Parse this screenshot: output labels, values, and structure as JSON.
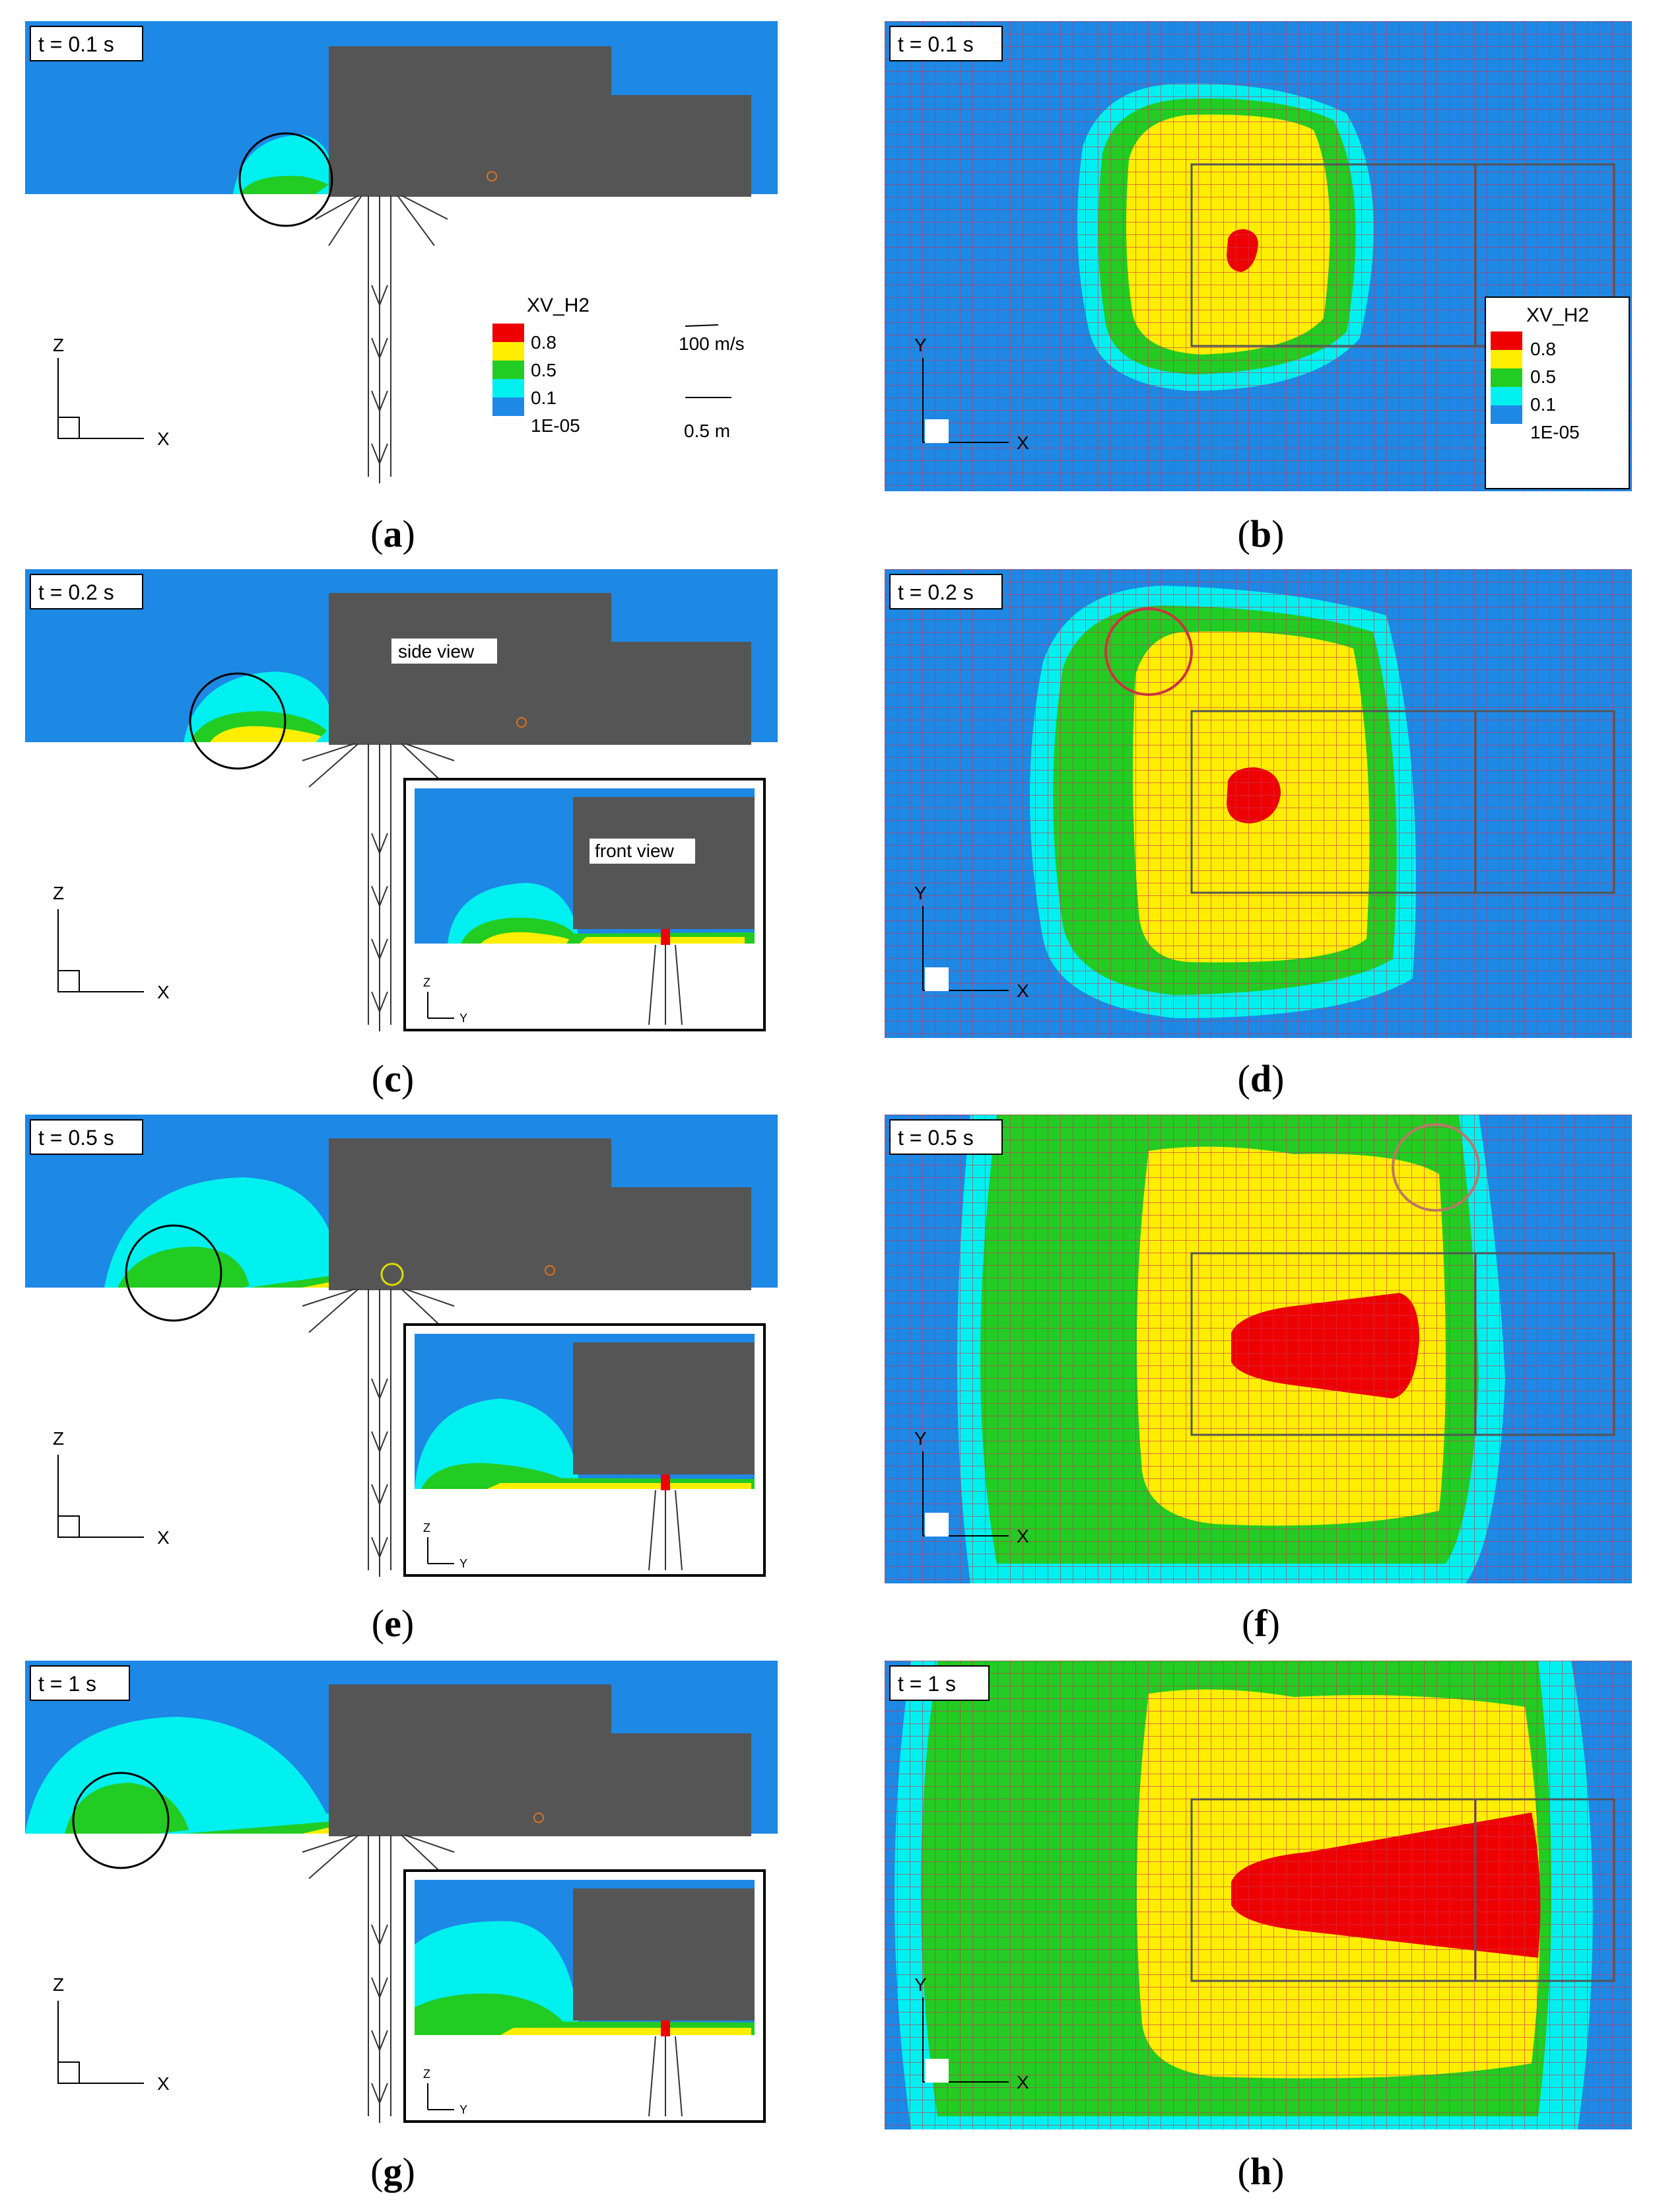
{
  "colors": {
    "background_blue": "#1e88e5",
    "level_08": "#ee0000",
    "level_05": "#ffee00",
    "level_01": "#22cc22",
    "level_1e05": "#00f0f0",
    "obstacle": "#555555",
    "grid_line": "#cc3355"
  },
  "legend": {
    "title": "XV_H2",
    "levels": [
      "0.8",
      "0.5",
      "0.1",
      "1E-05"
    ]
  },
  "scale": {
    "velocity": "100 m/s",
    "length": "0.5 m"
  },
  "axes": {
    "side": {
      "vertical": "Z",
      "horizontal": "X"
    },
    "top": {
      "vertical": "Y",
      "horizontal": "X"
    },
    "front": {
      "vertical": "Z",
      "horizontal": "Y"
    }
  },
  "labels": {
    "side_view": "side view",
    "front_view": "front view"
  },
  "panels": [
    {
      "id": "a",
      "time": "t = 0.1 s",
      "caption": "a"
    },
    {
      "id": "b",
      "time": "t = 0.1 s",
      "caption": "b"
    },
    {
      "id": "c",
      "time": "t = 0.2 s",
      "caption": "c"
    },
    {
      "id": "d",
      "time": "t = 0.2 s",
      "caption": "d"
    },
    {
      "id": "e",
      "time": "t = 0.5 s",
      "caption": "e"
    },
    {
      "id": "f",
      "time": "t = 0.5 s",
      "caption": "f"
    },
    {
      "id": "g",
      "time": "t = 1 s",
      "caption": "g"
    },
    {
      "id": "h",
      "time": "t = 1 s",
      "caption": "h"
    }
  ]
}
